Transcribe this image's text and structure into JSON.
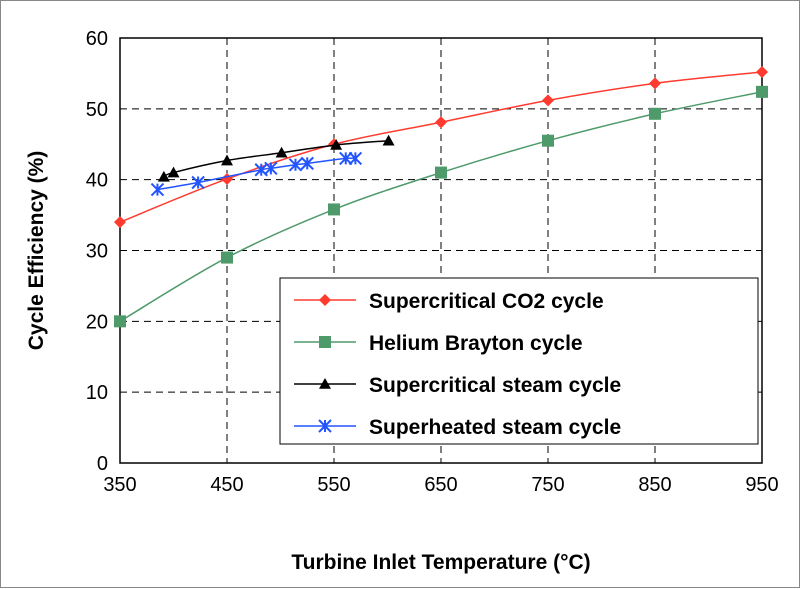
{
  "chart_data": {
    "type": "line",
    "title": "",
    "xlabel": "Turbine Inlet Temperature (°C)",
    "ylabel": "Cycle Efficiency (%)",
    "xlim": [
      350,
      950
    ],
    "ylim": [
      0,
      60
    ],
    "xticks": [
      "350",
      "450",
      "550",
      "650",
      "750",
      "850",
      "950"
    ],
    "yticks": [
      "0",
      "10",
      "20",
      "30",
      "40",
      "50",
      "60"
    ],
    "grid": true,
    "legend_position": "bottom-right",
    "series": [
      {
        "name": "Supercritical CO2 cycle",
        "color": "#ff3b30",
        "marker": "diamond",
        "x": [
          350,
          450,
          550,
          650,
          750,
          850,
          950
        ],
        "y": [
          34.0,
          40.1,
          45.0,
          48.1,
          51.2,
          53.6,
          55.2
        ]
      },
      {
        "name": "Helium Brayton cycle",
        "color": "#4e9a6a",
        "marker": "square",
        "x": [
          350,
          450,
          550,
          650,
          750,
          850,
          950
        ],
        "y": [
          20.0,
          29.0,
          35.8,
          41.0,
          45.5,
          49.3,
          52.4
        ]
      },
      {
        "name": "Supercritical steam cycle",
        "color": "#000000",
        "marker": "triangle",
        "x": [
          391,
          400,
          450,
          501,
          552,
          601
        ],
        "y": [
          40.4,
          41.0,
          42.7,
          43.8,
          44.9,
          45.5
        ]
      },
      {
        "name": "Superheated steam cycle",
        "color": "#2255ff",
        "marker": "asterisk",
        "x": [
          385,
          423,
          482,
          491,
          514,
          525,
          561,
          570
        ],
        "y": [
          38.6,
          39.6,
          41.4,
          41.6,
          42.1,
          42.3,
          43.0,
          43.0
        ]
      }
    ]
  }
}
